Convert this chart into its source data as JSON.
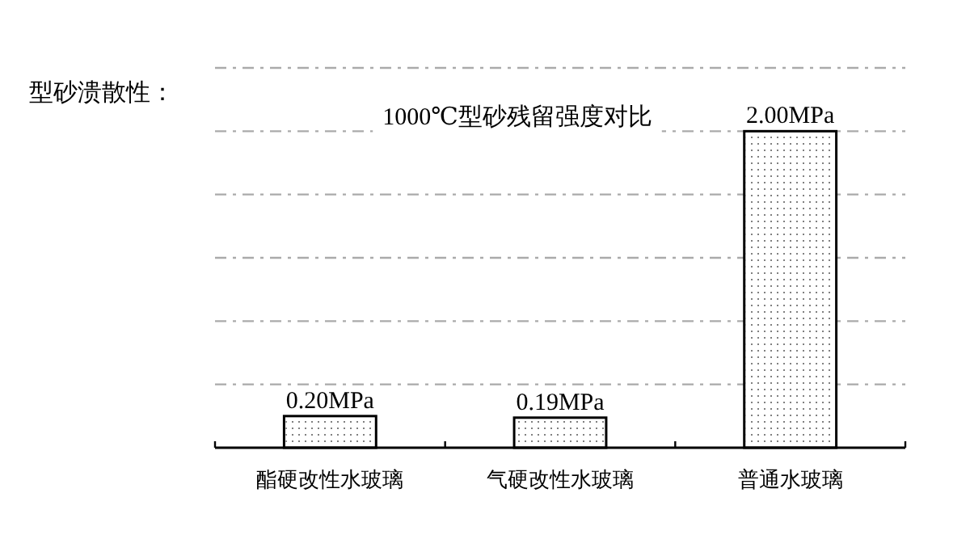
{
  "chart_data": {
    "type": "bar",
    "title": "1000℃型砂残留强度对比",
    "annotations": [
      "型砂溃散性："
    ],
    "categories": [
      "酯硬改性水玻璃",
      "气硬改性水玻璃",
      "普通水玻璃"
    ],
    "values": [
      0.2,
      0.19,
      2.0
    ],
    "color": "#ffffff",
    "value_labels": [
      "0.20MPa",
      "0.19MPa",
      "2.00MPa"
    ],
    "ylim": [
      0,
      2.4
    ],
    "yticks": [
      {
        "value": 0.4,
        "label": null
      },
      {
        "value": 0.8,
        "label": null
      },
      {
        "value": 1.2,
        "label": null
      },
      {
        "value": 1.6,
        "label": null
      },
      {
        "value": 2.0,
        "label": null
      },
      {
        "value": 2.4,
        "label": null
      }
    ],
    "grid": "y",
    "tick_labels": "x"
  }
}
